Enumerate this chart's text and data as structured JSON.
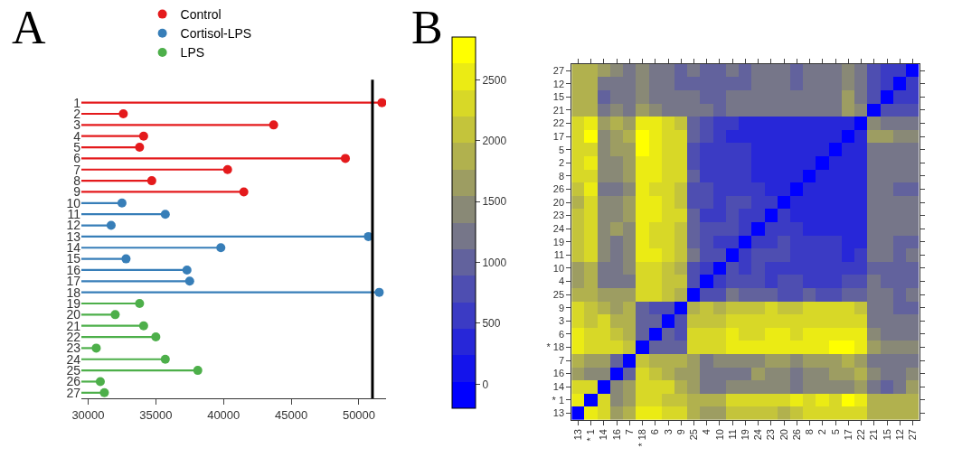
{
  "chart_data": [
    {
      "type": "lollipop",
      "title": "A",
      "orientation": "horizontal",
      "legend": "top",
      "marker": "circle",
      "categories": [
        "1",
        "2",
        "3",
        "4",
        "5",
        "6",
        "7",
        "8",
        "9",
        "10",
        "11",
        "12",
        "13",
        "14",
        "15",
        "16",
        "17",
        "18",
        "19",
        "20",
        "21",
        "22",
        "23",
        "24",
        "25",
        "26",
        "27"
      ],
      "series": [
        {
          "name": "Control",
          "color": "#e41a1c",
          "values": [
            51700,
            32600,
            43700,
            34100,
            33800,
            49000,
            40300,
            34700,
            41500,
            null,
            null,
            null,
            null,
            null,
            null,
            null,
            null,
            null,
            null,
            null,
            null,
            null,
            null,
            null,
            null,
            null,
            null
          ]
        },
        {
          "name": "Cortisol-LPS",
          "color": "#377eb8",
          "values": [
            null,
            null,
            null,
            null,
            null,
            null,
            null,
            null,
            null,
            32500,
            35700,
            31700,
            50700,
            39800,
            32800,
            37300,
            37500,
            51500,
            null,
            null,
            null,
            null,
            null,
            null,
            null,
            null,
            null
          ]
        },
        {
          "name": "LPS",
          "color": "#4daf4a",
          "values": [
            null,
            null,
            null,
            null,
            null,
            null,
            null,
            null,
            null,
            null,
            null,
            null,
            null,
            null,
            null,
            null,
            null,
            null,
            33800,
            32000,
            34100,
            35000,
            30600,
            35700,
            38100,
            30900,
            31200
          ]
        }
      ],
      "xlim": [
        29500,
        52000
      ],
      "xticks": [
        30000,
        35000,
        40000,
        45000,
        50000
      ],
      "ref_lines": [
        {
          "axis": "x",
          "value": 51000,
          "color": "#000000"
        }
      ]
    },
    {
      "type": "heatmap",
      "title": "B",
      "categories": [
        "13",
        "* 1",
        "14",
        "16",
        "7",
        "* 18",
        "6",
        "3",
        "9",
        "25",
        "4",
        "10",
        "11",
        "19",
        "24",
        "23",
        "20",
        "26",
        "8",
        "2",
        "5",
        "17",
        "22",
        "21",
        "15",
        "12",
        "27"
      ],
      "y_categories": [
        "27",
        "12",
        "15",
        "21",
        "22",
        "17",
        "5",
        "2",
        "8",
        "26",
        "20",
        "23",
        "24",
        "19",
        "11",
        "10",
        "4",
        "25",
        "9",
        "3",
        "6",
        "* 18",
        "7",
        "16",
        "14",
        "* 1",
        "13"
      ],
      "clim": [
        -200,
        2850
      ],
      "cticks": [
        0,
        500,
        1000,
        1500,
        2000,
        2500
      ],
      "cells": [
        [
          1900,
          1900,
          1600,
          1500,
          1200,
          1500,
          1300,
          1300,
          1100,
          1300,
          1000,
          900,
          1200,
          1100,
          1300,
          1200,
          1200,
          1100,
          1200,
          1200,
          1200,
          1400,
          1300,
          700,
          500,
          500,
          0
        ],
        [
          1900,
          1900,
          1200,
          1300,
          1200,
          1500,
          1300,
          1300,
          1100,
          1100,
          1000,
          900,
          1100,
          1100,
          1200,
          1200,
          1200,
          1100,
          1200,
          1200,
          1200,
          1400,
          1300,
          700,
          600,
          0,
          500
        ],
        [
          1900,
          1900,
          1100,
          1300,
          1300,
          1400,
          1300,
          1200,
          1200,
          1200,
          1100,
          1000,
          1200,
          1200,
          1200,
          1300,
          1300,
          1200,
          1200,
          1200,
          1200,
          1600,
          1300,
          800,
          0,
          600,
          500
        ],
        [
          1900,
          1800,
          1300,
          1500,
          1300,
          1600,
          1400,
          1200,
          1200,
          1200,
          1200,
          1100,
          1300,
          1200,
          1300,
          1300,
          1300,
          1200,
          1300,
          1300,
          1300,
          1600,
          1400,
          0,
          800,
          700,
          700
        ],
        [
          2200,
          2500,
          1600,
          1800,
          1700,
          2600,
          2500,
          2300,
          2100,
          1000,
          700,
          600,
          500,
          400,
          400,
          300,
          300,
          300,
          300,
          300,
          300,
          300,
          0,
          1400,
          1300,
          1300,
          1300
        ],
        [
          2300,
          2700,
          1500,
          1600,
          1800,
          2700,
          2600,
          2400,
          2200,
          900,
          700,
          600,
          400,
          400,
          400,
          300,
          300,
          300,
          300,
          300,
          300,
          0,
          300,
          1600,
          1600,
          1400,
          1400
        ],
        [
          2300,
          2400,
          1500,
          1600,
          1600,
          2700,
          2600,
          2400,
          2200,
          800,
          600,
          500,
          500,
          500,
          400,
          300,
          300,
          300,
          300,
          300,
          0,
          300,
          300,
          1300,
          1200,
          1200,
          1200
        ],
        [
          2200,
          2600,
          1500,
          1500,
          1700,
          2600,
          2600,
          2300,
          2200,
          800,
          600,
          500,
          500,
          500,
          400,
          400,
          300,
          300,
          300,
          0,
          300,
          300,
          300,
          1300,
          1200,
          1200,
          1200
        ],
        [
          2200,
          2400,
          1400,
          1500,
          1600,
          2600,
          2500,
          2300,
          2200,
          900,
          600,
          500,
          500,
          500,
          400,
          400,
          300,
          300,
          0,
          300,
          300,
          300,
          300,
          1300,
          1200,
          1200,
          1200
        ],
        [
          2100,
          2500,
          1300,
          1300,
          1500,
          2500,
          2400,
          2300,
          2100,
          800,
          700,
          600,
          500,
          500,
          500,
          400,
          400,
          0,
          300,
          300,
          300,
          300,
          300,
          1200,
          1200,
          1100,
          1100
        ],
        [
          1900,
          2400,
          1400,
          1500,
          1600,
          2600,
          2500,
          2300,
          2100,
          800,
          700,
          600,
          700,
          700,
          600,
          500,
          0,
          400,
          300,
          300,
          300,
          300,
          300,
          1300,
          1300,
          1200,
          1200
        ],
        [
          2100,
          2400,
          1500,
          1500,
          1600,
          2600,
          2500,
          2400,
          2200,
          900,
          600,
          600,
          800,
          600,
          600,
          0,
          500,
          400,
          400,
          400,
          300,
          300,
          300,
          1300,
          1300,
          1200,
          1200
        ],
        [
          2000,
          2300,
          1500,
          1600,
          1500,
          2500,
          2400,
          2300,
          2100,
          1000,
          700,
          700,
          700,
          500,
          0,
          600,
          600,
          500,
          400,
          400,
          400,
          400,
          400,
          1300,
          1200,
          1200,
          1300
        ],
        [
          2100,
          2300,
          1500,
          1300,
          1400,
          2500,
          2400,
          2300,
          2100,
          1100,
          700,
          600,
          500,
          0,
          500,
          600,
          700,
          500,
          500,
          500,
          500,
          400,
          400,
          1200,
          1200,
          1100,
          1100
        ],
        [
          2000,
          2200,
          1500,
          1300,
          1500,
          2600,
          2500,
          2300,
          2100,
          1300,
          800,
          700,
          0,
          500,
          700,
          800,
          700,
          500,
          500,
          500,
          500,
          400,
          500,
          1300,
          1200,
          1100,
          1200
        ],
        [
          1700,
          1800,
          1300,
          1200,
          1400,
          2300,
          2300,
          2000,
          1900,
          800,
          500,
          0,
          700,
          600,
          700,
          600,
          600,
          600,
          500,
          500,
          500,
          600,
          600,
          1100,
          1000,
          900,
          900
        ],
        [
          1700,
          1800,
          1300,
          1200,
          1200,
          2400,
          2300,
          2100,
          2000,
          700,
          0,
          500,
          800,
          700,
          700,
          600,
          700,
          700,
          600,
          600,
          600,
          700,
          700,
          1200,
          1100,
          1000,
          1000
        ],
        [
          1900,
          1900,
          1600,
          1600,
          1700,
          2300,
          2200,
          2100,
          1900,
          0,
          700,
          800,
          1300,
          1100,
          1000,
          900,
          800,
          800,
          900,
          800,
          800,
          900,
          1000,
          1200,
          1200,
          1100,
          1300
        ],
        [
          2400,
          2000,
          1900,
          1700,
          1800,
          900,
          700,
          700,
          0,
          1900,
          2000,
          1900,
          2100,
          2100,
          2100,
          2200,
          2100,
          2100,
          2200,
          2200,
          2200,
          2200,
          2100,
          1200,
          1200,
          1100,
          1100
        ],
        [
          2400,
          2000,
          2200,
          1900,
          1800,
          1100,
          900,
          0,
          700,
          2100,
          2100,
          2000,
          2300,
          2300,
          2300,
          2400,
          2300,
          2300,
          2300,
          2300,
          2400,
          2400,
          2300,
          1200,
          1200,
          1300,
          1300
        ],
        [
          2600,
          2200,
          2300,
          2100,
          1900,
          900,
          0,
          900,
          700,
          2200,
          2300,
          2300,
          2500,
          2400,
          2400,
          2500,
          2500,
          2400,
          2500,
          2600,
          2600,
          2600,
          2500,
          1400,
          1300,
          1300,
          1300
        ],
        [
          2600,
          2300,
          2400,
          2200,
          2000,
          0,
          900,
          1100,
          900,
          2300,
          2400,
          2300,
          2600,
          2500,
          2500,
          2600,
          2600,
          2500,
          2600,
          2600,
          2700,
          2700,
          2600,
          1600,
          1400,
          1500,
          1500
        ],
        [
          1900,
          1600,
          1600,
          1100,
          0,
          2000,
          1900,
          1800,
          1800,
          1700,
          1200,
          1400,
          1500,
          1400,
          1500,
          1600,
          1600,
          1500,
          1600,
          1700,
          1600,
          1800,
          1700,
          1300,
          1300,
          1200,
          1200
        ],
        [
          1700,
          1500,
          1400,
          0,
          1100,
          2200,
          2100,
          1900,
          1700,
          1600,
          1200,
          1200,
          1300,
          1300,
          1600,
          1500,
          1500,
          1300,
          1500,
          1500,
          1600,
          1600,
          1800,
          1500,
          1300,
          1300,
          1500
        ],
        [
          2200,
          2200,
          0,
          1400,
          1600,
          2400,
          2300,
          2200,
          1900,
          1600,
          1300,
          1300,
          1500,
          1500,
          1500,
          1500,
          1400,
          1300,
          1400,
          1500,
          1500,
          1500,
          1600,
          1300,
          1100,
          1200,
          1600
        ],
        [
          2500,
          0,
          2200,
          1500,
          1600,
          2300,
          2200,
          2000,
          2000,
          1900,
          1800,
          1800,
          2200,
          2300,
          2300,
          2400,
          2400,
          2500,
          2400,
          2600,
          2400,
          2700,
          2500,
          1800,
          1900,
          1900,
          1900
        ],
        [
          0,
          2500,
          2200,
          1700,
          1900,
          2600,
          2600,
          2400,
          2400,
          1900,
          1700,
          1700,
          2000,
          2100,
          2000,
          2100,
          1900,
          2100,
          2200,
          2200,
          2300,
          2300,
          2200,
          1900,
          1900,
          1900,
          1900
        ]
      ]
    }
  ]
}
